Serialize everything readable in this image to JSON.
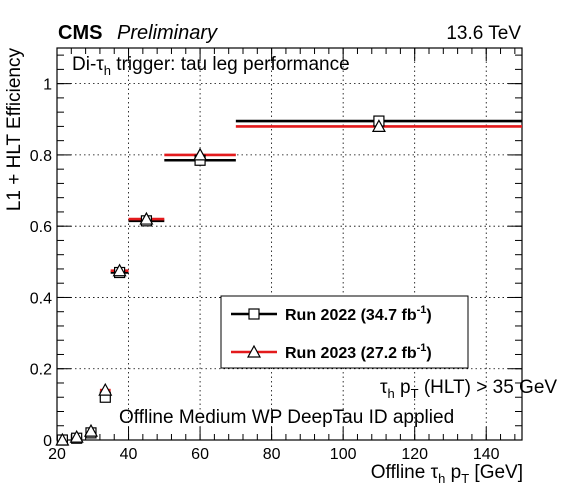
{
  "header": {
    "experiment": "CMS",
    "status": "Preliminary",
    "energy": "13.6 TeV"
  },
  "chart_data": {
    "type": "scatter",
    "title_prefix": "Di-τ",
    "title_sub": "h",
    "title_suffix": " trigger: tau leg performance",
    "xlabel_prefix": "Offline τ",
    "xlabel_sub1": "h",
    "xlabel_mid": " p",
    "xlabel_sub2": "T",
    "xlabel_suffix": " [GeV]",
    "ylabel": "L1 + HLT Efficiency",
    "xlim": [
      20,
      150
    ],
    "ylim": [
      0,
      1.1
    ],
    "xticks": [
      20,
      40,
      60,
      80,
      100,
      120,
      140
    ],
    "xtick_labels": [
      "20",
      "40",
      "60",
      "80",
      "100",
      "120",
      "140"
    ],
    "yticks": [
      0,
      0.2,
      0.4,
      0.6,
      0.8,
      1
    ],
    "ytick_labels": [
      "0",
      "0.2",
      "0.4",
      "0.6",
      "0.8",
      "1"
    ],
    "grid": true,
    "legend_position": "center-right",
    "series": [
      {
        "name_main": "Run 2022 (34.7 fb",
        "name_sup": "-1",
        "name_end": ")",
        "color": "#000000",
        "marker": "open-square",
        "points": [
          {
            "x": 21.5,
            "xerr": [
              20.5,
              23
            ],
            "y": 0.0
          },
          {
            "x": 25.5,
            "xerr": [
              24,
              27
            ],
            "y": 0.005
          },
          {
            "x": 29.5,
            "xerr": [
              28,
              31
            ],
            "y": 0.02
          },
          {
            "x": 33.5,
            "xerr": [
              32,
              35
            ],
            "y": 0.12
          },
          {
            "x": 37.5,
            "xerr": [
              35,
              40
            ],
            "y": 0.47
          },
          {
            "x": 45,
            "xerr": [
              40,
              50
            ],
            "y": 0.615
          },
          {
            "x": 60,
            "xerr": [
              50,
              70
            ],
            "y": 0.785
          },
          {
            "x": 110,
            "xerr": [
              70,
              150
            ],
            "y": 0.895
          }
        ]
      },
      {
        "name_main": "Run 2023 (27.2 fb",
        "name_sup": "-1",
        "name_end": ")",
        "color": "#e31a1c",
        "marker": "open-triangle",
        "points": [
          {
            "x": 21.5,
            "xerr": [
              20.5,
              23
            ],
            "y": 0.0
          },
          {
            "x": 25.5,
            "xerr": [
              24,
              27
            ],
            "y": 0.008
          },
          {
            "x": 29.5,
            "xerr": [
              28,
              31
            ],
            "y": 0.025
          },
          {
            "x": 33.5,
            "xerr": [
              32,
              35
            ],
            "y": 0.14
          },
          {
            "x": 37.5,
            "xerr": [
              35,
              40
            ],
            "y": 0.475
          },
          {
            "x": 45,
            "xerr": [
              40,
              50
            ],
            "y": 0.62
          },
          {
            "x": 60,
            "xerr": [
              50,
              70
            ],
            "y": 0.8
          },
          {
            "x": 110,
            "xerr": [
              70,
              150
            ],
            "y": 0.88
          }
        ]
      }
    ],
    "annotations": [
      {
        "id": "cut",
        "prefix": "τ",
        "sub1": "h",
        "mid": " p",
        "sub2": "T",
        "suffix": " (HLT) > 35 GeV"
      },
      {
        "id": "id",
        "text": "Offline Medium WP DeepTau ID applied"
      }
    ]
  }
}
